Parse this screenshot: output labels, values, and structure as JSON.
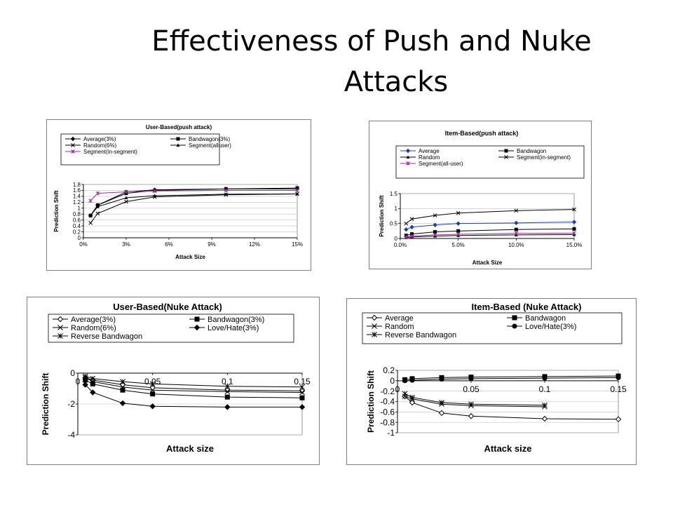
{
  "slide": {
    "title_line1": "Effectiveness of Push and Nuke",
    "title_line2": "Attacks"
  },
  "chart_data": [
    {
      "id": "ub-push",
      "type": "line",
      "title": "User-Based(push attack)",
      "xlabel": "Attack Size",
      "ylabel": "Prediction Shift",
      "x": [
        0.005,
        0.01,
        0.03,
        0.05,
        0.1,
        0.15
      ],
      "xticks": [
        0,
        0.03,
        0.06,
        0.09,
        0.12,
        0.15
      ],
      "xtick_labels": [
        "0%",
        "3%",
        "6%",
        "9%",
        "12%",
        "15%"
      ],
      "xlim": [
        0,
        0.15
      ],
      "ylim": [
        0,
        1.8
      ],
      "yticks": [
        0,
        0.2,
        0.4,
        0.6,
        0.8,
        1,
        1.2,
        1.4,
        1.6,
        1.8
      ],
      "ytick_labels": [
        "0",
        "0.2",
        "0.4",
        "0.6",
        "0.8",
        "1",
        "1.2",
        "1.4",
        "1.6",
        "1.8"
      ],
      "legend_columns": 2,
      "series": [
        {
          "name": "Average(3%)",
          "marker": "diamond",
          "values": [
            0.75,
            1.1,
            1.55,
            1.62,
            1.65,
            1.65
          ]
        },
        {
          "name": "Bandwagon(3%)",
          "marker": "square",
          "values": [
            0.75,
            1.1,
            1.5,
            1.6,
            1.65,
            1.68
          ]
        },
        {
          "name": "Random(6%)",
          "marker": "x",
          "values": [
            0.5,
            0.82,
            1.22,
            1.38,
            1.45,
            1.48
          ]
        },
        {
          "name": "Segment(alluser)",
          "marker": "triangle",
          "values": [
            0.75,
            1.05,
            1.35,
            1.42,
            1.47,
            1.48
          ]
        },
        {
          "name": "Segment(in-segment)",
          "marker": "star",
          "color": "#9b2d9b",
          "values": [
            1.25,
            1.5,
            1.55,
            1.58,
            1.6,
            1.6
          ]
        }
      ]
    },
    {
      "id": "ib-push",
      "type": "line",
      "title": "Item-Based(push attack)",
      "xlabel": "Attack Size",
      "ylabel": "Prediction Shift",
      "x": [
        0.005,
        0.01,
        0.03,
        0.05,
        0.1,
        0.15
      ],
      "xticks": [
        0,
        0.05,
        0.1,
        0.15
      ],
      "xtick_labels": [
        "0.0%",
        "5.0%",
        "10.0%",
        "15.0%"
      ],
      "xlim": [
        0,
        0.15
      ],
      "ylim": [
        0,
        1.5
      ],
      "yticks": [
        0,
        0.5,
        1,
        1.5
      ],
      "ytick_labels": [
        "0",
        "0.5",
        "1",
        "1.5"
      ],
      "legend_columns": 2,
      "series": [
        {
          "name": "Average",
          "marker": "diamond",
          "color": "#1f3fa8",
          "values": [
            0.3,
            0.38,
            0.45,
            0.5,
            0.52,
            0.55
          ]
        },
        {
          "name": "Bandwagon",
          "marker": "square",
          "values": [
            0.1,
            0.15,
            0.22,
            0.25,
            0.3,
            0.32
          ]
        },
        {
          "name": "Random",
          "marker": "triangle",
          "values": [
            0.03,
            0.05,
            0.08,
            0.1,
            0.12,
            0.13
          ]
        },
        {
          "name": "Segment(in-segment)",
          "marker": "x",
          "values": [
            0.5,
            0.65,
            0.77,
            0.85,
            0.93,
            0.97
          ]
        },
        {
          "name": "Segment(all-user)",
          "marker": "star",
          "color": "#9b2d9b",
          "values": [
            0.05,
            0.08,
            0.12,
            0.14,
            0.17,
            0.18
          ]
        }
      ]
    },
    {
      "id": "ub-nuke",
      "type": "line",
      "title": "User-Based(Nuke Attack)",
      "xlabel": "Attack size",
      "ylabel": "Prediction Shift",
      "x": [
        0.005,
        0.01,
        0.03,
        0.05,
        0.1,
        0.15
      ],
      "xticks": [
        0,
        0.05,
        0.1,
        0.15
      ],
      "xtick_labels": [
        "0",
        "0.05",
        "0.1",
        "0.15"
      ],
      "xlim": [
        0,
        0.15
      ],
      "ylim": [
        -4,
        0
      ],
      "yticks": [
        -4,
        -2,
        0
      ],
      "ytick_labels": [
        "-4",
        "-2",
        "0"
      ],
      "legend_columns": 2,
      "series": [
        {
          "name": "Average(3%)",
          "marker": "diamond-open",
          "values": [
            -0.3,
            -0.45,
            -0.75,
            -0.95,
            -1.1,
            -1.15
          ]
        },
        {
          "name": "Bandwagon(3%)",
          "marker": "square",
          "values": [
            -0.45,
            -0.7,
            -1.1,
            -1.35,
            -1.55,
            -1.6
          ]
        },
        {
          "name": "Random(6%)",
          "marker": "x",
          "values": [
            -0.3,
            -0.55,
            -0.9,
            -1.1,
            -1.2,
            -1.25
          ]
        },
        {
          "name": "Love/Hate(3%)",
          "marker": "diamond",
          "values": [
            -0.75,
            -1.25,
            -1.95,
            -2.15,
            -2.2,
            -2.2
          ]
        },
        {
          "name": "Reverse Bandwagon",
          "marker": "star",
          "values": [
            -0.2,
            -0.35,
            -0.55,
            -0.7,
            -0.85,
            -0.9
          ]
        }
      ]
    },
    {
      "id": "ib-nuke",
      "type": "line",
      "title": "Item-Based (Nuke Attack)",
      "xlabel": "Attack size",
      "ylabel": "Prediction Shift",
      "x": [
        0.005,
        0.01,
        0.03,
        0.05,
        0.1,
        0.15
      ],
      "xticks": [
        0,
        0.05,
        0.1,
        0.15
      ],
      "xtick_labels": [
        "0",
        "0.05",
        "0.1",
        "0.15"
      ],
      "xlim": [
        0,
        0.15
      ],
      "ylim": [
        -1,
        0.2
      ],
      "yticks": [
        -1,
        -0.8,
        -0.6,
        -0.4,
        -0.2,
        0,
        0.2
      ],
      "ytick_labels": [
        "-1",
        "-0.8",
        "-0.6",
        "-0.4",
        "-0.2",
        "0",
        "0.2"
      ],
      "legend_columns": 2,
      "series": [
        {
          "name": "Average",
          "marker": "diamond-open",
          "values": [
            -0.3,
            -0.42,
            -0.62,
            -0.68,
            -0.73,
            -0.74
          ]
        },
        {
          "name": "Bandwagon",
          "marker": "square",
          "values": [
            0.02,
            0.04,
            0.06,
            0.07,
            0.08,
            0.09
          ]
        },
        {
          "name": "Random",
          "marker": "x",
          "values": [
            -0.3,
            -0.35,
            -0.45,
            -0.48,
            -0.5,
            null
          ]
        },
        {
          "name": "Love/Hate(3%)",
          "marker": "circle",
          "values": [
            0.0,
            0.01,
            0.03,
            0.04,
            0.05,
            0.06
          ]
        },
        {
          "name": "Reverse Bandwagon",
          "marker": "star",
          "values": [
            -0.25,
            -0.32,
            -0.42,
            -0.45,
            -0.47,
            null
          ]
        }
      ]
    }
  ]
}
